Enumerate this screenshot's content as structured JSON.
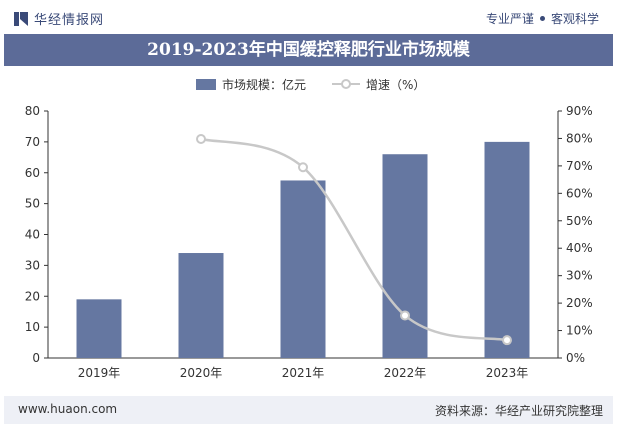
{
  "header": {
    "brand": "华经情报网",
    "tagline_left": "专业严谨",
    "tagline_right": "客观科学",
    "title": "2019-2023年中国缓控释肥行业市场规模"
  },
  "footer": {
    "url": "www.huaon.com",
    "source": "资料来源：华经产业研究院整理"
  },
  "colors": {
    "bar": "#6577a1",
    "line": "#c8c8c8",
    "title_bg": "#5c6b98",
    "accent_text": "#3a4a78"
  },
  "chart_data": {
    "type": "bar",
    "categories": [
      "2019年",
      "2020年",
      "2021年",
      "2022年",
      "2023年"
    ],
    "series": [
      {
        "name": "市场规模：亿元",
        "type": "bar",
        "axis": "left",
        "values": [
          19,
          34,
          57.5,
          66,
          70
        ]
      },
      {
        "name": "增速（%）",
        "type": "line",
        "axis": "right",
        "values": [
          null,
          79.8,
          69.5,
          15.5,
          6.5
        ]
      }
    ],
    "y_left": {
      "min": 0,
      "max": 80,
      "ticks": [
        "0",
        "10",
        "20",
        "30",
        "40",
        "50",
        "60",
        "70",
        "80"
      ]
    },
    "y_right": {
      "min": 0,
      "max": 90,
      "ticks": [
        "0%",
        "10%",
        "20%",
        "30%",
        "40%",
        "50%",
        "60%",
        "70%",
        "80%",
        "90%"
      ]
    },
    "legend_position": "top-center",
    "grid": false
  }
}
